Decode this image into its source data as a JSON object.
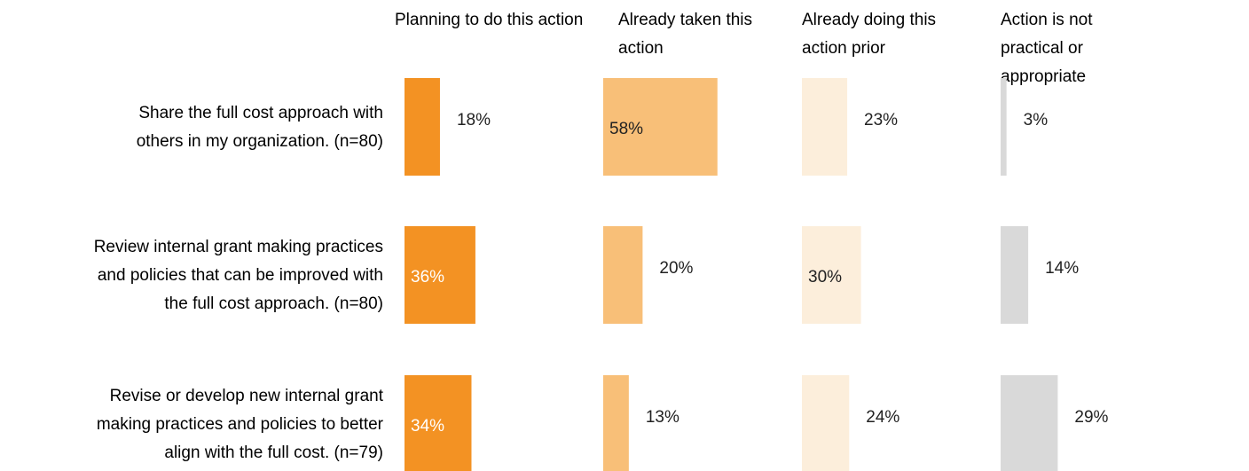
{
  "chart_data": {
    "type": "bar",
    "layout": "small-multiples",
    "columns": [
      "Planning to do this action",
      "Already taken this action",
      "Already doing this action prior",
      "Action is not practical or appropriate"
    ],
    "rows": [
      "Share the full cost approach with others in my organization. (n=80)",
      "Review internal grant making practices and policies that can be improved with the full cost approach. (n=80)",
      "Revise or develop new internal grant making practices and policies to better align with the full cost. (n=79)"
    ],
    "series": [
      {
        "name": "Planning to do this action",
        "values": [
          18,
          36,
          34
        ],
        "labels": [
          "18%",
          "36%",
          "34%"
        ],
        "color": "#f39223"
      },
      {
        "name": "Already taken this action",
        "values": [
          58,
          20,
          13
        ],
        "labels": [
          "58%",
          "20%",
          "13%"
        ],
        "color": "#f8bf78"
      },
      {
        "name": "Already doing this action prior",
        "values": [
          23,
          30,
          24
        ],
        "labels": [
          "23%",
          "30%",
          "24%"
        ],
        "color": "#fceedb"
      },
      {
        "name": "Action is not practical or appropriate",
        "values": [
          3,
          14,
          29
        ],
        "labels": [
          "3%",
          "14%",
          "29%"
        ],
        "color": "#d9d9d9"
      }
    ],
    "unit": "%",
    "grid": false,
    "legend": "none"
  }
}
